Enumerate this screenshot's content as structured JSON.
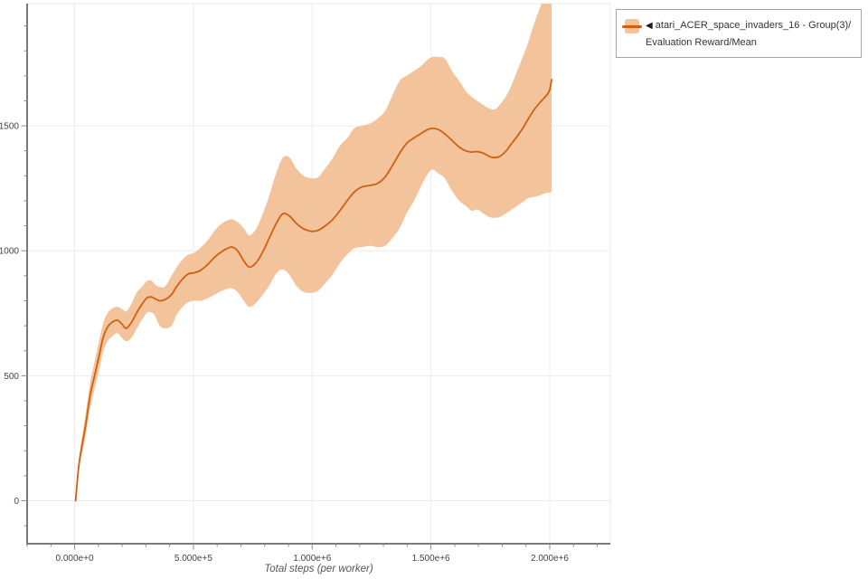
{
  "legend": {
    "marker": "◀",
    "label": "atari_ACER_space_invaders_16 - Group(3)/Evaluation Reward/Mean"
  },
  "colors": {
    "line": "#d0600f",
    "band": "#f3c49c",
    "grid": "#ebebeb",
    "spine": "#7a7a7a",
    "tick": "#8a8a8a",
    "tick_label": "#444444",
    "legend_border": "#a6a6a6",
    "legend_text": "#333333"
  },
  "chart_data": {
    "type": "line",
    "title": "",
    "xlabel": "Total steps (per worker)",
    "ylabel": "",
    "grid": true,
    "legend_position": "top-right",
    "xlim": [
      -200000,
      2255000
    ],
    "ylim": [
      -172,
      1989
    ],
    "x_ticks": [
      {
        "value": 0,
        "label": "0.000e+0"
      },
      {
        "value": 500000,
        "label": "5.000e+5"
      },
      {
        "value": 1000000,
        "label": "1.000e+6"
      },
      {
        "value": 1500000,
        "label": "1.500e+6"
      },
      {
        "value": 2000000,
        "label": "2.000e+6"
      }
    ],
    "x_minor_step": 100000,
    "y_ticks": [
      {
        "value": 0,
        "label": "0"
      },
      {
        "value": 500,
        "label": "500"
      },
      {
        "value": 1000,
        "label": "1000"
      },
      {
        "value": 1500,
        "label": "1500"
      }
    ],
    "y_minor_step": 100,
    "series": [
      {
        "name": "atari_ACER_space_invaders_16 - Group(3)/Evaluation Reward/Mean",
        "x": [
          4000,
          19000,
          46000,
          65000,
          84000,
          103000,
          118000,
          133000,
          152000,
          179000,
          198000,
          217000,
          240000,
          263000,
          286000,
          305000,
          324000,
          339000,
          358000,
          381000,
          408000,
          430000,
          457000,
          480000,
          503000,
          530000,
          560000,
          590000,
          621000,
          644000,
          663000,
          686000,
          712000,
          735000,
          762000,
          789000,
          819000,
          849000,
          876000,
          903000,
          933000,
          964000,
          998000,
          1025000,
          1055000,
          1086000,
          1116000,
          1147000,
          1177000,
          1208000,
          1246000,
          1276000,
          1307000,
          1337000,
          1368000,
          1398000,
          1429000,
          1459000,
          1482000,
          1505000,
          1531000,
          1558000,
          1588000,
          1619000,
          1646000,
          1672000,
          1695000,
          1722000,
          1745000,
          1767000,
          1790000,
          1817000,
          1840000,
          1863000,
          1886000,
          1908000,
          1931000,
          1954000,
          1973000,
          1989000,
          2000000,
          2008000
        ],
        "mean": [
          0,
          150,
          300,
          420,
          500,
          580,
          645,
          685,
          710,
          722,
          708,
          690,
          715,
          755,
          790,
          812,
          815,
          808,
          800,
          805,
          825,
          858,
          890,
          908,
          912,
          922,
          945,
          975,
          998,
          1010,
          1015,
          1000,
          960,
          935,
          950,
          990,
          1050,
          1110,
          1148,
          1140,
          1110,
          1088,
          1078,
          1082,
          1100,
          1125,
          1160,
          1200,
          1235,
          1255,
          1262,
          1270,
          1295,
          1340,
          1390,
          1430,
          1452,
          1470,
          1483,
          1490,
          1485,
          1468,
          1442,
          1415,
          1400,
          1395,
          1397,
          1390,
          1378,
          1373,
          1378,
          1400,
          1430,
          1458,
          1490,
          1525,
          1560,
          1588,
          1608,
          1625,
          1645,
          1685
        ],
        "lower": [
          0,
          128,
          258,
          368,
          448,
          523,
          588,
          628,
          653,
          670,
          653,
          638,
          653,
          690,
          728,
          753,
          753,
          738,
          700,
          690,
          700,
          745,
          778,
          795,
          800,
          800,
          810,
          825,
          840,
          848,
          850,
          835,
          800,
          775,
          790,
          820,
          860,
          910,
          925,
          905,
          860,
          835,
          832,
          840,
          870,
          905,
          950,
          985,
          1010,
          1015,
          1020,
          1015,
          1020,
          1050,
          1090,
          1150,
          1200,
          1260,
          1300,
          1325,
          1310,
          1290,
          1240,
          1200,
          1180,
          1160,
          1165,
          1148,
          1135,
          1132,
          1135,
          1150,
          1165,
          1180,
          1195,
          1210,
          1215,
          1220,
          1228,
          1232,
          1233,
          1235
        ],
        "upper": [
          0,
          172,
          345,
          472,
          557,
          640,
          702,
          742,
          766,
          776,
          768,
          758,
          790,
          835,
          858,
          880,
          880,
          864,
          855,
          858,
          900,
          935,
          968,
          985,
          992,
          1012,
          1042,
          1082,
          1110,
          1122,
          1126,
          1115,
          1090,
          1062,
          1085,
          1140,
          1220,
          1312,
          1372,
          1375,
          1330,
          1300,
          1290,
          1295,
          1330,
          1370,
          1420,
          1450,
          1490,
          1500,
          1510,
          1530,
          1560,
          1620,
          1680,
          1700,
          1720,
          1740,
          1762,
          1775,
          1775,
          1770,
          1720,
          1680,
          1640,
          1615,
          1600,
          1582,
          1570,
          1565,
          1585,
          1620,
          1665,
          1720,
          1775,
          1830,
          1900,
          1960,
          2010,
          2050,
          2070,
          2080
        ]
      }
    ]
  }
}
